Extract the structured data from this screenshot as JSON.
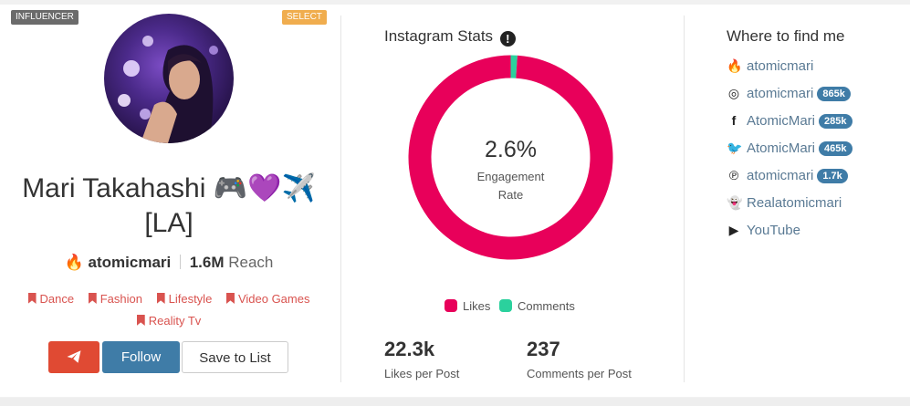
{
  "badges": {
    "influencer": "INFLUENCER",
    "select": "SELECT"
  },
  "profile": {
    "name_line1": "Mari Takahashi 🎮💜✈️",
    "name_line2": "[LA]",
    "handle_icon": "🔥",
    "handle": "atomicmari",
    "reach_value": "1.6M",
    "reach_label": "Reach",
    "tags": [
      "Dance",
      "Fashion",
      "Lifestyle",
      "Video Games",
      "Reality Tv"
    ]
  },
  "actions": {
    "send_icon": "paper-plane-icon",
    "follow": "Follow",
    "save": "Save to List"
  },
  "stats": {
    "title": "Instagram Stats",
    "info_glyph": "!",
    "engagement_value": "2.6%",
    "engagement_label_1": "Engagement",
    "engagement_label_2": "Rate",
    "legend": [
      {
        "label": "Likes",
        "color": "#e8005a"
      },
      {
        "label": "Comments",
        "color": "#2bd19d"
      }
    ],
    "likes_per_post": "22.3k",
    "likes_per_post_label": "Likes per Post",
    "comments_per_post": "237",
    "comments_per_post_label": "Comments per Post"
  },
  "chart_data": {
    "type": "pie",
    "categories": [
      "Likes",
      "Comments"
    ],
    "values": [
      22300,
      237
    ],
    "colors": [
      "#e8005a",
      "#2bd19d"
    ]
  },
  "where": {
    "title": "Where to find me",
    "links": [
      {
        "icon": "fire-icon",
        "glyph": "🔥",
        "label": "atomicmari",
        "count": ""
      },
      {
        "icon": "instagram-icon",
        "glyph": "◎",
        "label": "atomicmari",
        "count": "865k"
      },
      {
        "icon": "facebook-icon",
        "glyph": "f",
        "label": "AtomicMari",
        "count": "285k"
      },
      {
        "icon": "twitter-icon",
        "glyph": "🐦",
        "label": "AtomicMari",
        "count": "465k"
      },
      {
        "icon": "pinterest-icon",
        "glyph": "℗",
        "label": "atomicmari",
        "count": "1.7k"
      },
      {
        "icon": "snapchat-icon",
        "glyph": "👻",
        "label": "Realatomicmari",
        "count": ""
      },
      {
        "icon": "youtube-icon",
        "glyph": "▶",
        "label": "YouTube",
        "count": ""
      }
    ]
  }
}
